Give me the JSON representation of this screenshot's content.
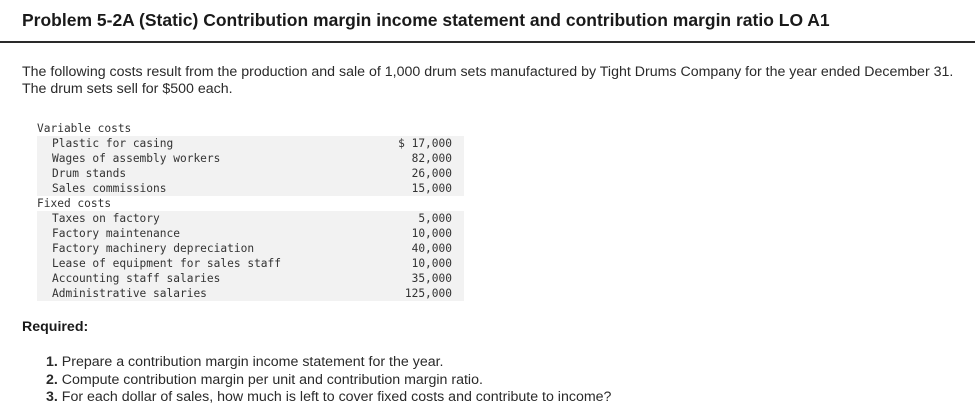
{
  "header": {
    "title": "Problem 5-2A (Static) Contribution margin income statement and contribution margin ratio LO A1"
  },
  "intro": {
    "text": "The following costs result from the production and sale of 1,000 drum sets manufactured by Tight Drums Company for the year ended December 31. The drum sets sell for $500 each."
  },
  "cost_table": {
    "variable": {
      "label": "Variable costs",
      "items": [
        {
          "label": "Plastic for casing",
          "amount": "$ 17,000"
        },
        {
          "label": "Wages of assembly workers",
          "amount": "82,000"
        },
        {
          "label": "Drum stands",
          "amount": "26,000"
        },
        {
          "label": "Sales commissions",
          "amount": "15,000"
        }
      ]
    },
    "fixed": {
      "label": "Fixed costs",
      "items": [
        {
          "label": "Taxes on factory",
          "amount": "5,000"
        },
        {
          "label": "Factory maintenance",
          "amount": "10,000"
        },
        {
          "label": "Factory machinery depreciation",
          "amount": "40,000"
        },
        {
          "label": "Lease of equipment for sales staff",
          "amount": "10,000"
        },
        {
          "label": "Accounting staff salaries",
          "amount": "35,000"
        },
        {
          "label": "Administrative salaries",
          "amount": "125,000"
        }
      ]
    }
  },
  "required": {
    "heading": "Required:",
    "items": [
      {
        "num": "1.",
        "text": "Prepare a contribution margin income statement for the year."
      },
      {
        "num": "2.",
        "text": "Compute contribution margin per unit and contribution margin ratio."
      },
      {
        "num": "3.",
        "text": "For each dollar of sales, how much is left to cover fixed costs and contribute to income?"
      }
    ]
  }
}
